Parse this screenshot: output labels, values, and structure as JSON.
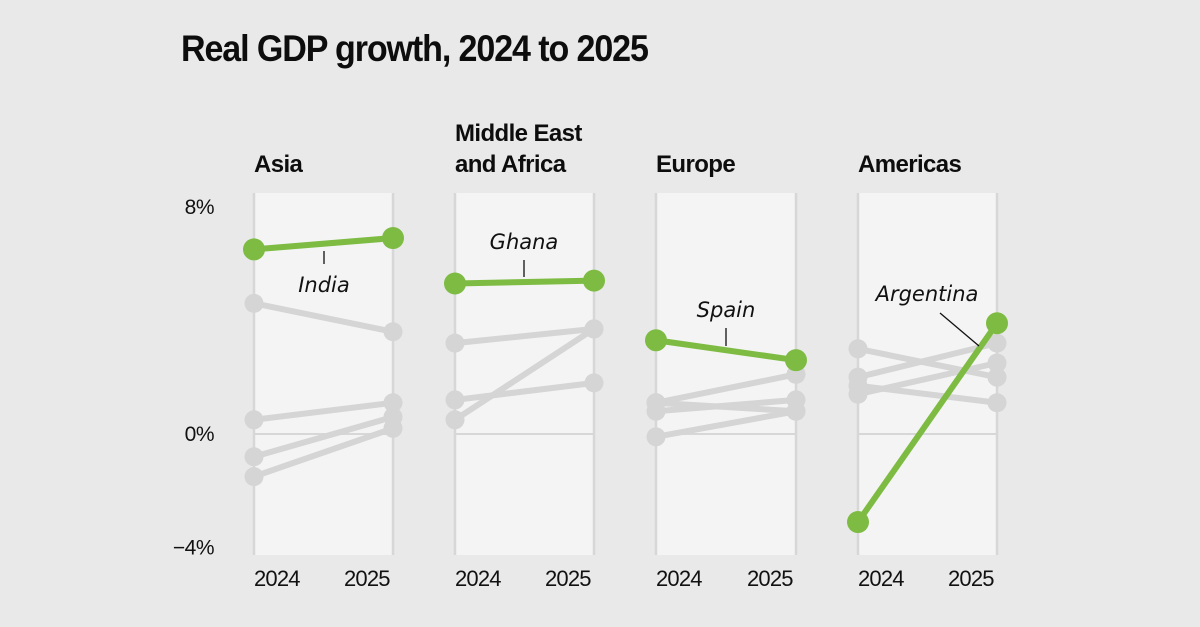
{
  "title": "Real GDP growth, 2024 to 2025",
  "colors": {
    "background": "#e8e9e8",
    "panel": "#f3f4f3",
    "highlight": "#7dbb42",
    "other": "#d4d5d4",
    "text": "#0d0d0d"
  },
  "chart_data": {
    "type": "line",
    "subtype": "slope",
    "title": "Real GDP growth, 2024 to 2025",
    "x": [
      "2024",
      "2025"
    ],
    "ylim": [
      -4,
      8
    ],
    "yticks": [
      8,
      0,
      -4
    ],
    "ytick_labels": [
      "8%",
      "0%",
      "−4%"
    ],
    "unit": "%",
    "grid": false,
    "zero_line": true,
    "panels": [
      {
        "name": "Asia",
        "title_lines": [
          "Asia"
        ],
        "highlight": {
          "name": "India",
          "values": [
            6.5,
            6.9
          ]
        },
        "others": [
          {
            "values": [
              4.6,
              3.6
            ]
          },
          {
            "values": [
              0.5,
              1.1
            ]
          },
          {
            "values": [
              -0.8,
              0.6
            ]
          },
          {
            "values": [
              -1.5,
              0.2
            ]
          }
        ]
      },
      {
        "name": "Middle East and Africa",
        "title_lines": [
          "Middle East",
          "and Africa"
        ],
        "highlight": {
          "name": "Ghana",
          "values": [
            5.3,
            5.4
          ]
        },
        "others": [
          {
            "values": [
              3.2,
              3.7
            ]
          },
          {
            "values": [
              1.2,
              1.8
            ]
          },
          {
            "values": [
              0.5,
              3.7
            ]
          }
        ]
      },
      {
        "name": "Europe",
        "title_lines": [
          "Europe"
        ],
        "highlight": {
          "name": "Spain",
          "values": [
            3.3,
            2.6
          ]
        },
        "others": [
          {
            "values": [
              1.1,
              2.1
            ]
          },
          {
            "values": [
              0.8,
              1.2
            ]
          },
          {
            "values": [
              1.1,
              0.8
            ]
          },
          {
            "values": [
              -0.1,
              0.8
            ]
          }
        ]
      },
      {
        "name": "Americas",
        "title_lines": [
          "Americas"
        ],
        "highlight": {
          "name": "Argentina",
          "values": [
            -3.1,
            3.9
          ]
        },
        "others": [
          {
            "values": [
              3.0,
              2.0
            ]
          },
          {
            "values": [
              2.0,
              3.2
            ]
          },
          {
            "values": [
              1.4,
              2.5
            ]
          },
          {
            "values": [
              1.7,
              1.1
            ]
          }
        ]
      }
    ]
  }
}
